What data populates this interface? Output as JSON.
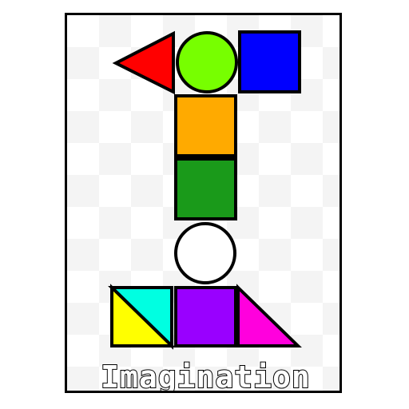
{
  "title": "Imagination",
  "colors": {
    "outline": "#000000",
    "background": "#ffffff",
    "checker_light": "#f4f4f4",
    "triangle_red": "#ff0000",
    "circle_green": "#77ff00",
    "square_blue": "#0000ff",
    "square_orange": "#ffaa00",
    "square_green": "#1a9a1a",
    "circle_white": "#ffffff",
    "triangle_cyan": "#00ffe1",
    "triangle_yellow": "#ffff00",
    "square_purple": "#9900ff",
    "triangle_magenta": "#ff00dd"
  },
  "shapes": [
    {
      "name": "red-triangle",
      "kind": "triangle",
      "color": "triangle_red"
    },
    {
      "name": "green-circle",
      "kind": "circle",
      "color": "circle_green"
    },
    {
      "name": "blue-square",
      "kind": "square",
      "color": "square_blue"
    },
    {
      "name": "orange-square",
      "kind": "square",
      "color": "square_orange"
    },
    {
      "name": "green-square",
      "kind": "square",
      "color": "square_green"
    },
    {
      "name": "white-circle",
      "kind": "circle",
      "color": "circle_white"
    },
    {
      "name": "cyan-triangle",
      "kind": "triangle",
      "color": "triangle_cyan"
    },
    {
      "name": "yellow-triangle",
      "kind": "triangle",
      "color": "triangle_yellow"
    },
    {
      "name": "purple-square",
      "kind": "square",
      "color": "square_purple"
    },
    {
      "name": "magenta-triangle",
      "kind": "triangle",
      "color": "triangle_magenta"
    }
  ]
}
